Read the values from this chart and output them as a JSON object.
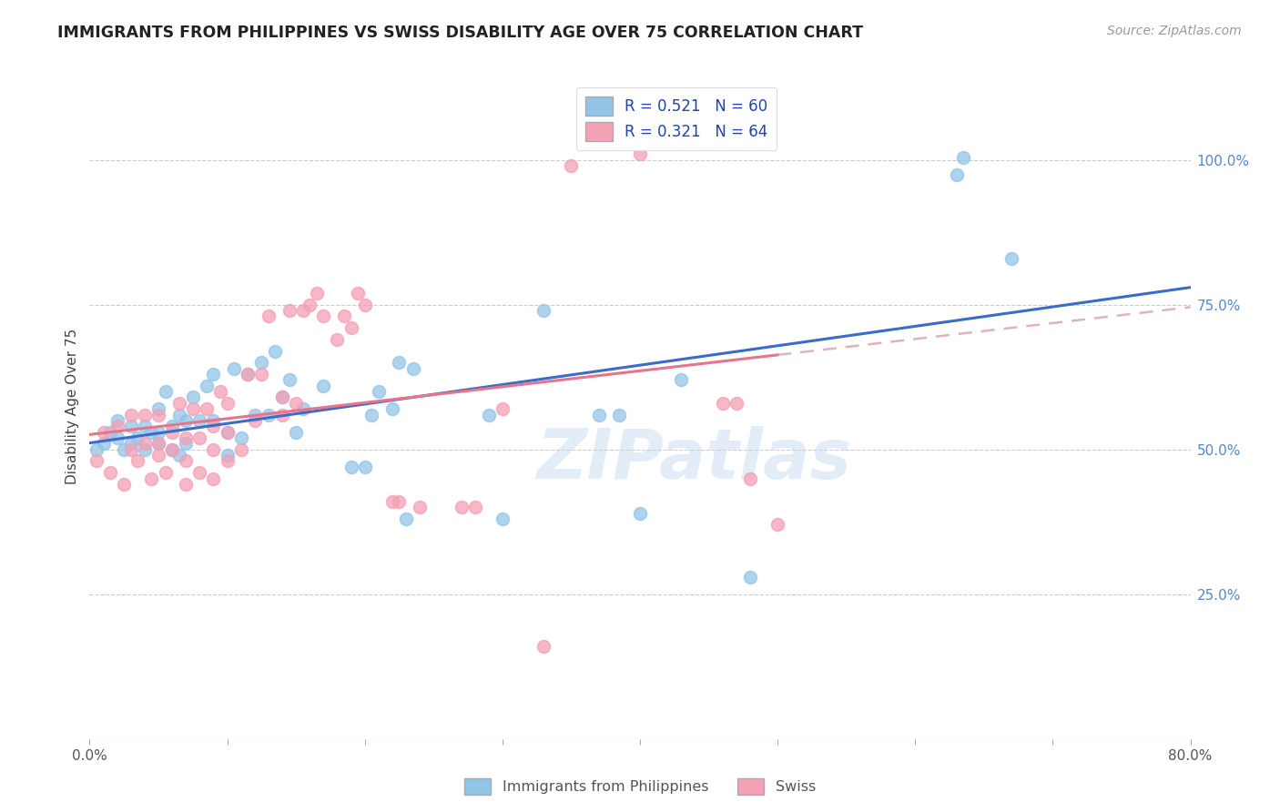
{
  "title": "IMMIGRANTS FROM PHILIPPINES VS SWISS DISABILITY AGE OVER 75 CORRELATION CHART",
  "source": "Source: ZipAtlas.com",
  "ylabel": "Disability Age Over 75",
  "xlim": [
    0.0,
    0.8
  ],
  "ylim": [
    0.0,
    1.15
  ],
  "blue_color": "#92C5E8",
  "pink_color": "#F4A0B5",
  "blue_line_color": "#3B6CC7",
  "pink_line_color": "#E8748A",
  "pink_dash_color": "#D9A0A8",
  "legend_r_blue": "0.521",
  "legend_n_blue": "60",
  "legend_r_pink": "0.321",
  "legend_n_pink": "64",
  "legend_label_blue": "Immigrants from Philippines",
  "legend_label_pink": "Swiss",
  "watermark": "ZIPatlas",
  "blue_points_x": [
    0.005,
    0.01,
    0.015,
    0.02,
    0.02,
    0.025,
    0.03,
    0.03,
    0.035,
    0.04,
    0.04,
    0.045,
    0.05,
    0.05,
    0.05,
    0.055,
    0.06,
    0.06,
    0.065,
    0.065,
    0.07,
    0.07,
    0.075,
    0.08,
    0.085,
    0.09,
    0.09,
    0.1,
    0.1,
    0.105,
    0.11,
    0.115,
    0.12,
    0.125,
    0.13,
    0.135,
    0.14,
    0.145,
    0.15,
    0.155,
    0.17,
    0.19,
    0.2,
    0.205,
    0.21,
    0.22,
    0.225,
    0.23,
    0.235,
    0.29,
    0.3,
    0.33,
    0.37,
    0.385,
    0.4,
    0.43,
    0.48,
    0.63,
    0.635,
    0.67
  ],
  "blue_points_y": [
    0.5,
    0.51,
    0.53,
    0.52,
    0.55,
    0.5,
    0.51,
    0.54,
    0.52,
    0.5,
    0.54,
    0.53,
    0.51,
    0.53,
    0.57,
    0.6,
    0.5,
    0.54,
    0.49,
    0.56,
    0.51,
    0.55,
    0.59,
    0.55,
    0.61,
    0.55,
    0.63,
    0.49,
    0.53,
    0.64,
    0.52,
    0.63,
    0.56,
    0.65,
    0.56,
    0.67,
    0.59,
    0.62,
    0.53,
    0.57,
    0.61,
    0.47,
    0.47,
    0.56,
    0.6,
    0.57,
    0.65,
    0.38,
    0.64,
    0.56,
    0.38,
    0.74,
    0.56,
    0.56,
    0.39,
    0.62,
    0.28,
    0.975,
    1.005,
    0.83
  ],
  "pink_points_x": [
    0.005,
    0.01,
    0.015,
    0.02,
    0.025,
    0.03,
    0.03,
    0.035,
    0.04,
    0.04,
    0.045,
    0.05,
    0.05,
    0.05,
    0.055,
    0.06,
    0.06,
    0.065,
    0.07,
    0.07,
    0.07,
    0.075,
    0.08,
    0.08,
    0.085,
    0.09,
    0.09,
    0.09,
    0.095,
    0.1,
    0.1,
    0.1,
    0.11,
    0.115,
    0.12,
    0.125,
    0.13,
    0.14,
    0.14,
    0.145,
    0.15,
    0.155,
    0.16,
    0.165,
    0.17,
    0.18,
    0.185,
    0.19,
    0.195,
    0.2,
    0.22,
    0.225,
    0.24,
    0.27,
    0.28,
    0.3,
    0.33,
    0.35,
    0.4,
    0.43,
    0.46,
    0.47,
    0.48,
    0.5
  ],
  "pink_points_y": [
    0.48,
    0.53,
    0.46,
    0.54,
    0.44,
    0.5,
    0.56,
    0.48,
    0.51,
    0.56,
    0.45,
    0.49,
    0.51,
    0.56,
    0.46,
    0.5,
    0.53,
    0.58,
    0.44,
    0.48,
    0.52,
    0.57,
    0.46,
    0.52,
    0.57,
    0.45,
    0.5,
    0.54,
    0.6,
    0.48,
    0.53,
    0.58,
    0.5,
    0.63,
    0.55,
    0.63,
    0.73,
    0.56,
    0.59,
    0.74,
    0.58,
    0.74,
    0.75,
    0.77,
    0.73,
    0.69,
    0.73,
    0.71,
    0.77,
    0.75,
    0.41,
    0.41,
    0.4,
    0.4,
    0.4,
    0.57,
    0.16,
    0.99,
    1.01,
    1.03,
    0.58,
    0.58,
    0.45,
    0.37
  ]
}
